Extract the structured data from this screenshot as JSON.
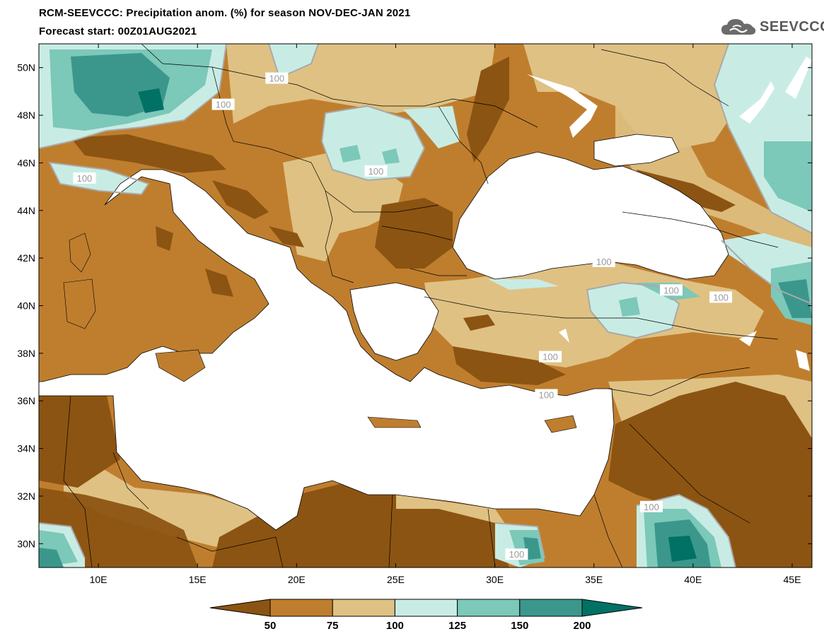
{
  "header": {
    "title": "RCM-SEEVCCC: Precipitation anom. (%) for season NOV-DEC-JAN 2021",
    "subtitle": "Forecast start: 00Z01AUG2021"
  },
  "logo": {
    "text": "SEEVCCC",
    "icon": "cloud-icon"
  },
  "map": {
    "lon_range": [
      7,
      46
    ],
    "lat_range": [
      29,
      51
    ],
    "x_ticks": [
      {
        "value": 10,
        "label": "10E"
      },
      {
        "value": 15,
        "label": "15E"
      },
      {
        "value": 20,
        "label": "20E"
      },
      {
        "value": 25,
        "label": "25E"
      },
      {
        "value": 30,
        "label": "30E"
      },
      {
        "value": 35,
        "label": "35E"
      },
      {
        "value": 40,
        "label": "40E"
      },
      {
        "value": 45,
        "label": "45E"
      }
    ],
    "y_ticks": [
      {
        "value": 30,
        "label": "30N"
      },
      {
        "value": 32,
        "label": "32N"
      },
      {
        "value": 34,
        "label": "34N"
      },
      {
        "value": 36,
        "label": "36N"
      },
      {
        "value": 38,
        "label": "38N"
      },
      {
        "value": 40,
        "label": "40N"
      },
      {
        "value": 42,
        "label": "42N"
      },
      {
        "value": 44,
        "label": "44N"
      },
      {
        "value": 46,
        "label": "46N"
      },
      {
        "value": 48,
        "label": "48N"
      },
      {
        "value": 50,
        "label": "50N"
      }
    ],
    "contour_labels": [
      {
        "text": "100",
        "lon": 19.0,
        "lat": 49.5
      },
      {
        "text": "100",
        "lon": 16.3,
        "lat": 48.4
      },
      {
        "text": "100",
        "lon": 9.3,
        "lat": 45.3
      },
      {
        "text": "100",
        "lon": 24.0,
        "lat": 45.6
      },
      {
        "text": "100",
        "lon": 35.5,
        "lat": 41.8
      },
      {
        "text": "100",
        "lon": 38.9,
        "lat": 40.6
      },
      {
        "text": "100",
        "lon": 41.4,
        "lat": 40.3
      },
      {
        "text": "100",
        "lon": 32.8,
        "lat": 37.8
      },
      {
        "text": "100",
        "lon": 32.6,
        "lat": 36.2
      },
      {
        "text": "100",
        "lon": 37.9,
        "lat": 31.5
      },
      {
        "text": "100",
        "lon": 31.1,
        "lat": 29.5
      }
    ]
  },
  "legend": {
    "levels": [
      "50",
      "75",
      "100",
      "125",
      "150",
      "200"
    ],
    "colors": [
      "#8c5412",
      "#bf7e2e",
      "#dfc183",
      "#c8ece4",
      "#7cc8b9",
      "#3b978c",
      "#017165"
    ],
    "line_color": "#a9a9a9"
  }
}
